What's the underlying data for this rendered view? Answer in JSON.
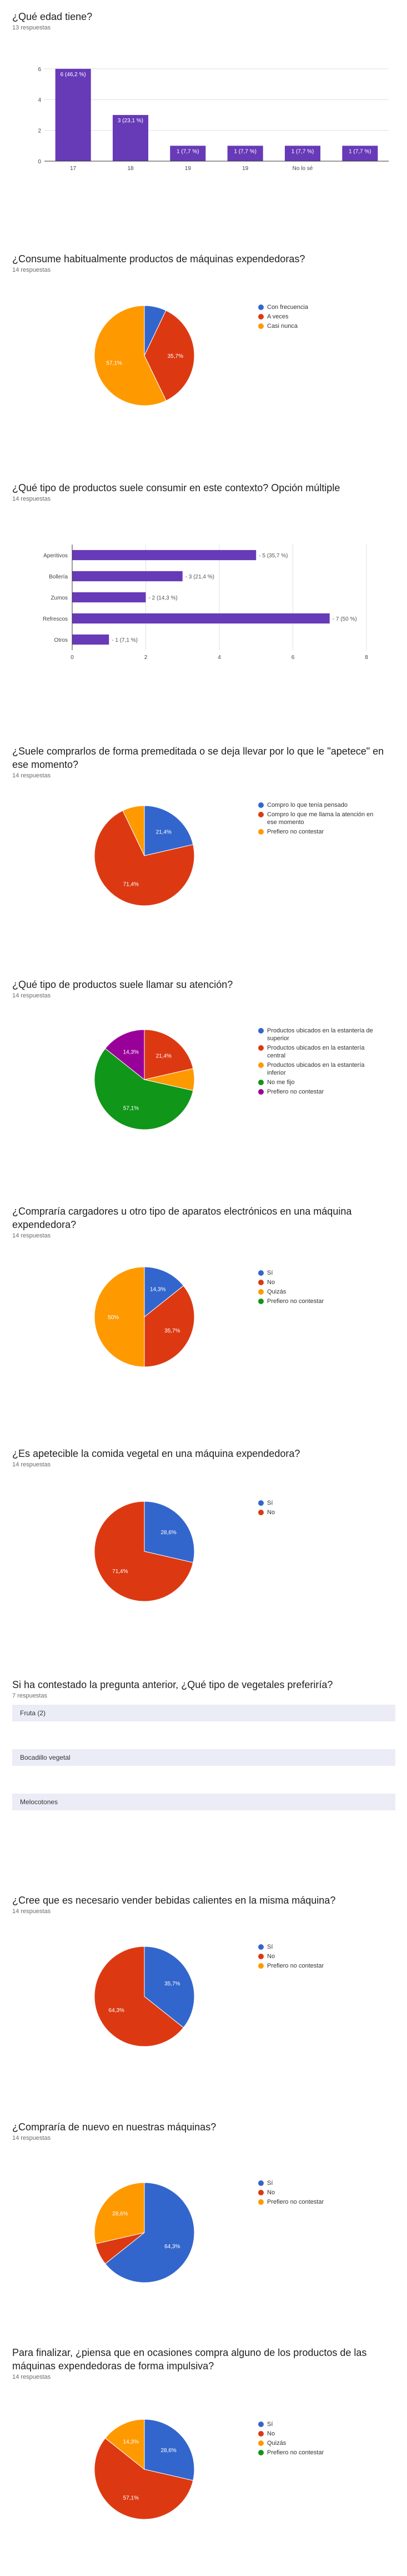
{
  "colors": {
    "blue": "#3366cc",
    "red": "#dc3912",
    "orange": "#ff9900",
    "green": "#109618",
    "purple": "#990099",
    "bar": "#673ab7"
  },
  "questions": [
    {
      "title": "¿Qué edad tiene?",
      "count": "13 respuestas"
    },
    {
      "title": "¿Consume habitualmente productos de máquinas expendedoras?",
      "count": "14 respuestas"
    },
    {
      "title": "¿Qué tipo de productos suele consumir en este contexto? Opción múltiple",
      "count": "14 respuestas"
    },
    {
      "title": "¿Suele comprarlos de forma premeditada o se deja llevar por lo que le \"apetece\" en ese momento?",
      "count": "14 respuestas"
    },
    {
      "title": "¿Qué tipo de productos suele llamar su atención?",
      "count": "14 respuestas"
    },
    {
      "title": "¿Compraría cargadores u otro tipo de aparatos electrónicos en una máquina expendedora?",
      "count": "14 respuestas"
    },
    {
      "title": "¿Es apetecible la comida vegetal en una máquina expendedora?",
      "count": "14 respuestas"
    },
    {
      "title": "Si ha contestado la pregunta anterior, ¿Qué tipo de vegetales preferiría?",
      "count": "7 respuestas"
    },
    {
      "title": "¿Cree que es necesario vender bebidas calientes en la misma máquina?",
      "count": "14 respuestas"
    },
    {
      "title": "¿Compraría de nuevo en nuestras máquinas?",
      "count": "14 respuestas"
    },
    {
      "title": "Para finalizar, ¿piensa que en ocasiones compra alguno de los productos de las máquinas expendedoras de forma impulsiva?",
      "count": "14 respuestas"
    }
  ],
  "text_answers": [
    "Fruta (2)",
    "",
    "Bocadillo vegetal",
    "",
    "Melocotones"
  ],
  "chart_data": [
    {
      "type": "bar",
      "orientation": "vertical",
      "categories": [
        "17",
        "18",
        "19",
        "19",
        "No lo sé",
        ""
      ],
      "values": [
        6,
        3,
        1,
        1,
        1,
        1
      ],
      "labels": [
        "6 (46,2 %)",
        "3 (23,1 %)",
        "1 (7,7 %)",
        "1 (7,7 %)",
        "1 (7,7 %)",
        "1 (7,7 %)"
      ],
      "yticks": [
        "0",
        "2",
        "4",
        "6"
      ],
      "ylim": [
        0,
        6.5
      ]
    },
    {
      "type": "pie",
      "labels": [
        "Con frecuencia",
        "A veces",
        "Casi nunca"
      ],
      "values": [
        7.1,
        35.7,
        57.1
      ],
      "slice_labels": [
        "",
        "35,7%",
        "57,1%"
      ],
      "colors": [
        "#3366cc",
        "#dc3912",
        "#ff9900"
      ]
    },
    {
      "type": "bar",
      "orientation": "horizontal",
      "categories": [
        "Aperitivos",
        "Bollería",
        "Zumos",
        "Refrescos",
        "Otros"
      ],
      "values": [
        5,
        3,
        2,
        7,
        1
      ],
      "labels": [
        "5 (35,7 %)",
        "3 (21,4 %)",
        "2 (14,3 %)",
        "7 (50 %)",
        "1 (7,1 %)"
      ],
      "xticks": [
        "0",
        "2",
        "4",
        "6",
        "8"
      ],
      "xlim": [
        0,
        8
      ]
    },
    {
      "type": "pie",
      "labels": [
        "Compro lo que tenía pensado",
        "Compro lo que me llama la atención en ese momento",
        "Prefiero no contestar"
      ],
      "values": [
        21.4,
        71.4,
        7.1
      ],
      "slice_labels": [
        "21,4%",
        "71,4%",
        ""
      ],
      "colors": [
        "#3366cc",
        "#dc3912",
        "#ff9900"
      ]
    },
    {
      "type": "pie",
      "labels": [
        "Productos ubicados en la estantería de superior",
        "Productos ubicados en la estantería central",
        "Productos ubicados en la estantería inferior",
        "No me fijo",
        "Prefiero no contestar"
      ],
      "values": [
        0,
        21.4,
        7.1,
        57.1,
        14.3
      ],
      "slice_labels": [
        "",
        "21,4%",
        "",
        "57,1%",
        "14,3%"
      ],
      "colors": [
        "#3366cc",
        "#dc3912",
        "#ff9900",
        "#109618",
        "#990099"
      ]
    },
    {
      "type": "pie",
      "labels": [
        "Sí",
        "No",
        "Quizás",
        "Prefiero no contestar"
      ],
      "values": [
        14.3,
        35.7,
        50,
        0
      ],
      "slice_labels": [
        "14,3%",
        "35,7%",
        "50%",
        ""
      ],
      "colors": [
        "#3366cc",
        "#dc3912",
        "#ff9900",
        "#109618"
      ]
    },
    {
      "type": "pie",
      "labels": [
        "Sí",
        "No"
      ],
      "values": [
        28.6,
        71.4
      ],
      "slice_labels": [
        "28,6%",
        "71,4%"
      ],
      "colors": [
        "#3366cc",
        "#dc3912"
      ]
    },
    {
      "type": "pie",
      "labels": [
        "Sí",
        "No",
        "Prefiero no contestar"
      ],
      "values": [
        35.7,
        64.3,
        0
      ],
      "slice_labels": [
        "35,7%",
        "64,3%",
        ""
      ],
      "colors": [
        "#3366cc",
        "#dc3912",
        "#ff9900"
      ]
    },
    {
      "type": "pie",
      "labels": [
        "Sí",
        "No",
        "Prefiero no contestar"
      ],
      "values": [
        64.3,
        7.1,
        28.6
      ],
      "slice_labels": [
        "64,3%",
        "",
        "28,6%"
      ],
      "colors": [
        "#3366cc",
        "#dc3912",
        "#ff9900"
      ]
    },
    {
      "type": "pie",
      "labels": [
        "Sí",
        "No",
        "Quizás",
        "Prefiero no contestar"
      ],
      "values": [
        28.6,
        57.1,
        14.3,
        0
      ],
      "slice_labels": [
        "28,6%",
        "57,1%",
        "14,3%",
        ""
      ],
      "colors": [
        "#3366cc",
        "#dc3912",
        "#ff9900",
        "#109618"
      ]
    }
  ]
}
